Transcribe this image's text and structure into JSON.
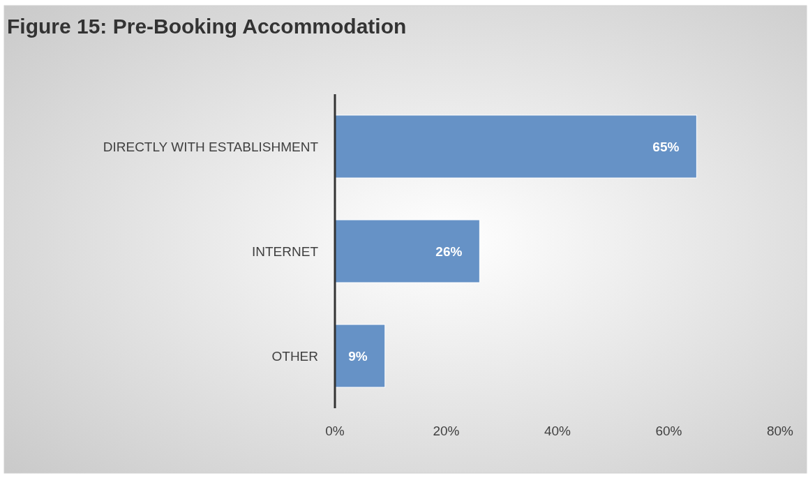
{
  "chart_data": {
    "type": "bar",
    "orientation": "horizontal",
    "title": "Figure 15:  Pre-Booking Accommodation",
    "categories": [
      "DIRECTLY WITH ESTABLISHMENT",
      "INTERNET",
      "OTHER"
    ],
    "values": [
      65,
      26,
      9
    ],
    "color": "#6692c6",
    "xlim": [
      0,
      80
    ],
    "xticks": [
      {
        "value": 0,
        "label": "0%"
      },
      {
        "value": 20,
        "label": "20%"
      },
      {
        "value": 40,
        "label": "40%"
      },
      {
        "value": 60,
        "label": "60%"
      },
      {
        "value": 80,
        "label": "80%"
      }
    ],
    "value_labels": [
      "65%",
      "26%",
      "9%"
    ],
    "grid": false
  }
}
